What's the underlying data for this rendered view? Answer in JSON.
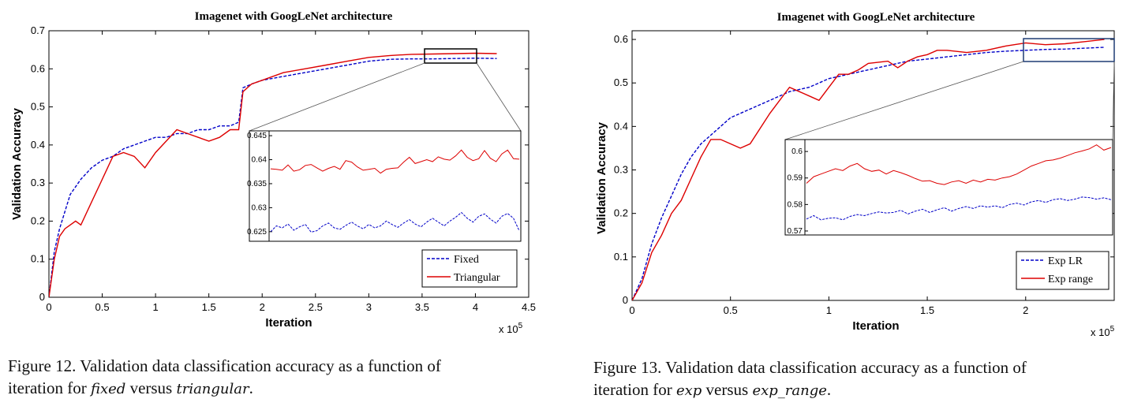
{
  "chart_data": [
    {
      "type": "line",
      "title": "Imagenet with GoogLeNet architecture",
      "xlabel": "Iteration",
      "ylabel": "Validation Accuracy",
      "x_multiplier": "x 10",
      "x_multiplier_exp": "5",
      "xlim": [
        0,
        4.5
      ],
      "ylim": [
        0,
        0.7
      ],
      "xticks": [
        "0",
        "0.5",
        "1",
        "1.5",
        "2",
        "2.5",
        "3",
        "3.5",
        "4",
        "4.5"
      ],
      "yticks": [
        "0",
        "0.1",
        "0.2",
        "0.3",
        "0.4",
        "0.5",
        "0.6",
        "0.7"
      ],
      "legend": "bottom-right",
      "series": [
        {
          "name": "Fixed",
          "style": "dashed",
          "color": "#0000c8",
          "x": [
            0,
            0.05,
            0.1,
            0.2,
            0.3,
            0.4,
            0.5,
            0.6,
            0.7,
            0.8,
            0.9,
            1.0,
            1.1,
            1.2,
            1.3,
            1.4,
            1.5,
            1.6,
            1.7,
            1.78,
            1.82,
            1.9,
            2.0,
            2.2,
            2.4,
            2.6,
            2.8,
            3.0,
            3.2,
            3.4,
            3.6,
            3.8,
            4.0,
            4.2
          ],
          "y": [
            0,
            0.12,
            0.18,
            0.27,
            0.31,
            0.34,
            0.36,
            0.37,
            0.39,
            0.4,
            0.41,
            0.42,
            0.42,
            0.43,
            0.43,
            0.44,
            0.44,
            0.45,
            0.45,
            0.46,
            0.55,
            0.56,
            0.57,
            0.58,
            0.59,
            0.6,
            0.61,
            0.62,
            0.625,
            0.626,
            0.626,
            0.627,
            0.628,
            0.627
          ]
        },
        {
          "name": "Triangular",
          "style": "solid",
          "color": "#dd0000",
          "x": [
            0,
            0.05,
            0.1,
            0.15,
            0.2,
            0.25,
            0.3,
            0.4,
            0.5,
            0.6,
            0.7,
            0.8,
            0.9,
            1.0,
            1.1,
            1.2,
            1.3,
            1.4,
            1.5,
            1.6,
            1.7,
            1.78,
            1.82,
            1.9,
            2.0,
            2.2,
            2.4,
            2.6,
            2.8,
            3.0,
            3.2,
            3.4,
            3.6,
            3.8,
            4.0,
            4.2
          ],
          "y": [
            0,
            0.1,
            0.16,
            0.18,
            0.19,
            0.2,
            0.19,
            0.25,
            0.31,
            0.37,
            0.38,
            0.37,
            0.34,
            0.38,
            0.41,
            0.44,
            0.43,
            0.42,
            0.41,
            0.42,
            0.44,
            0.44,
            0.54,
            0.56,
            0.57,
            0.59,
            0.6,
            0.61,
            0.62,
            0.63,
            0.635,
            0.638,
            0.639,
            0.64,
            0.641,
            0.64
          ]
        }
      ],
      "inset": {
        "yticks": [
          "0.645",
          "0.64",
          "0.635",
          "0.63",
          "0.625"
        ],
        "ylim": [
          0.623,
          0.646
        ],
        "series": [
          {
            "name": "Fixed",
            "y": [
              0.625,
              0.6262,
              0.6258,
              0.6266,
              0.6253,
              0.626,
              0.6265,
              0.6249,
              0.6252,
              0.6262,
              0.6268,
              0.6258,
              0.6255,
              0.6263,
              0.627,
              0.6262,
              0.6256,
              0.6265,
              0.6258,
              0.6262,
              0.6272,
              0.6265,
              0.6259,
              0.6268,
              0.6275,
              0.6266,
              0.626,
              0.627,
              0.6278,
              0.627,
              0.6262,
              0.6272,
              0.628,
              0.629,
              0.6278,
              0.627,
              0.6282,
              0.6287,
              0.6276,
              0.6268,
              0.6282,
              0.6288,
              0.6278,
              0.6252
            ]
          },
          {
            "name": "Triangular",
            "y": [
              0.6381,
              0.638,
              0.6378,
              0.6389,
              0.6376,
              0.6379,
              0.6388,
              0.639,
              0.6383,
              0.6376,
              0.6382,
              0.6386,
              0.638,
              0.6398,
              0.6395,
              0.6385,
              0.6378,
              0.638,
              0.6382,
              0.6372,
              0.638,
              0.6382,
              0.6383,
              0.6395,
              0.6405,
              0.6392,
              0.6396,
              0.64,
              0.6396,
              0.6406,
              0.6401,
              0.6399,
              0.6408,
              0.642,
              0.6405,
              0.6398,
              0.6402,
              0.6419,
              0.6403,
              0.6396,
              0.6412,
              0.642,
              0.6402,
              0.6401
            ]
          }
        ]
      }
    },
    {
      "type": "line",
      "title": "Imagenet with GoogLeNet architecture",
      "xlabel": "Iteration",
      "ylabel": "Validation Accuracy",
      "x_multiplier": "x 10",
      "x_multiplier_exp": "5",
      "xlim": [
        0,
        2.45
      ],
      "ylim": [
        0,
        0.62
      ],
      "xticks": [
        "0",
        "0.5",
        "1",
        "1.5",
        "2"
      ],
      "yticks": [
        "0",
        "0.1",
        "0.2",
        "0.3",
        "0.4",
        "0.5",
        "0.6"
      ],
      "legend": "bottom-right",
      "series": [
        {
          "name": "Exp LR",
          "style": "dashed",
          "color": "#0000c8",
          "x": [
            0,
            0.05,
            0.1,
            0.15,
            0.2,
            0.25,
            0.3,
            0.35,
            0.4,
            0.45,
            0.5,
            0.6,
            0.7,
            0.8,
            0.9,
            1.0,
            1.1,
            1.2,
            1.3,
            1.4,
            1.5,
            1.6,
            1.7,
            1.8,
            1.9,
            2.0,
            2.1,
            2.2,
            2.3,
            2.4
          ],
          "y": [
            0,
            0.05,
            0.13,
            0.19,
            0.24,
            0.29,
            0.33,
            0.36,
            0.38,
            0.4,
            0.42,
            0.44,
            0.46,
            0.48,
            0.49,
            0.51,
            0.52,
            0.53,
            0.54,
            0.55,
            0.555,
            0.56,
            0.565,
            0.57,
            0.573,
            0.575,
            0.577,
            0.578,
            0.58,
            0.582
          ]
        },
        {
          "name": "Exp range",
          "style": "solid",
          "color": "#dd0000",
          "x": [
            0,
            0.05,
            0.1,
            0.15,
            0.2,
            0.25,
            0.3,
            0.35,
            0.4,
            0.45,
            0.5,
            0.55,
            0.6,
            0.7,
            0.8,
            0.85,
            0.9,
            0.95,
            1.0,
            1.05,
            1.1,
            1.15,
            1.2,
            1.3,
            1.35,
            1.4,
            1.45,
            1.5,
            1.55,
            1.6,
            1.7,
            1.8,
            1.9,
            2.0,
            2.1,
            2.2,
            2.3,
            2.4
          ],
          "y": [
            0,
            0.04,
            0.11,
            0.15,
            0.2,
            0.23,
            0.28,
            0.33,
            0.37,
            0.37,
            0.36,
            0.35,
            0.36,
            0.43,
            0.49,
            0.48,
            0.47,
            0.46,
            0.49,
            0.52,
            0.52,
            0.53,
            0.545,
            0.55,
            0.535,
            0.55,
            0.56,
            0.565,
            0.575,
            0.575,
            0.57,
            0.575,
            0.585,
            0.592,
            0.588,
            0.59,
            0.595,
            0.6
          ]
        }
      ],
      "inset": {
        "yticks": [
          "0.6",
          "0.59",
          "0.58",
          "0.57"
        ],
        "ylim": [
          0.5685,
          0.6045
        ],
        "series": [
          {
            "name": "Exp LR",
            "y": [
              0.5745,
              0.5758,
              0.5742,
              0.5748,
              0.575,
              0.5742,
              0.5755,
              0.5762,
              0.5758,
              0.5766,
              0.5772,
              0.5768,
              0.577,
              0.5778,
              0.5764,
              0.5775,
              0.5782,
              0.577,
              0.578,
              0.5788,
              0.5775,
              0.5785,
              0.5792,
              0.5785,
              0.5795,
              0.579,
              0.5795,
              0.5788,
              0.58,
              0.5805,
              0.5798,
              0.581,
              0.5815,
              0.5808,
              0.5818,
              0.5822,
              0.5815,
              0.582,
              0.5828,
              0.5826,
              0.582,
              0.5825,
              0.5818
            ]
          },
          {
            "name": "Exp range",
            "y": [
              0.588,
              0.5905,
              0.5915,
              0.5925,
              0.5935,
              0.5928,
              0.5945,
              0.5955,
              0.5935,
              0.5925,
              0.593,
              0.5915,
              0.5928,
              0.592,
              0.591,
              0.5898,
              0.5888,
              0.589,
              0.588,
              0.5875,
              0.5885,
              0.589,
              0.588,
              0.5892,
              0.5885,
              0.5895,
              0.5892,
              0.59,
              0.5905,
              0.5915,
              0.593,
              0.5945,
              0.5955,
              0.5965,
              0.5968,
              0.5975,
              0.5985,
              0.5995,
              0.6002,
              0.601,
              0.6025,
              0.6005,
              0.6015
            ]
          }
        ]
      }
    }
  ],
  "captions": [
    {
      "prefix": "Figure 12. Validation data classification accuracy as a function of",
      "line2_start": "iteration for ",
      "term1": "fixed",
      "mid": " versus ",
      "term2": "triangular",
      "end": "."
    },
    {
      "prefix": "Figure 13. Validation data classification accuracy as a function of",
      "line2_start": "iteration for ",
      "term1": "exp",
      "mid": " versus ",
      "term2": "exp_range",
      "end": "."
    }
  ]
}
